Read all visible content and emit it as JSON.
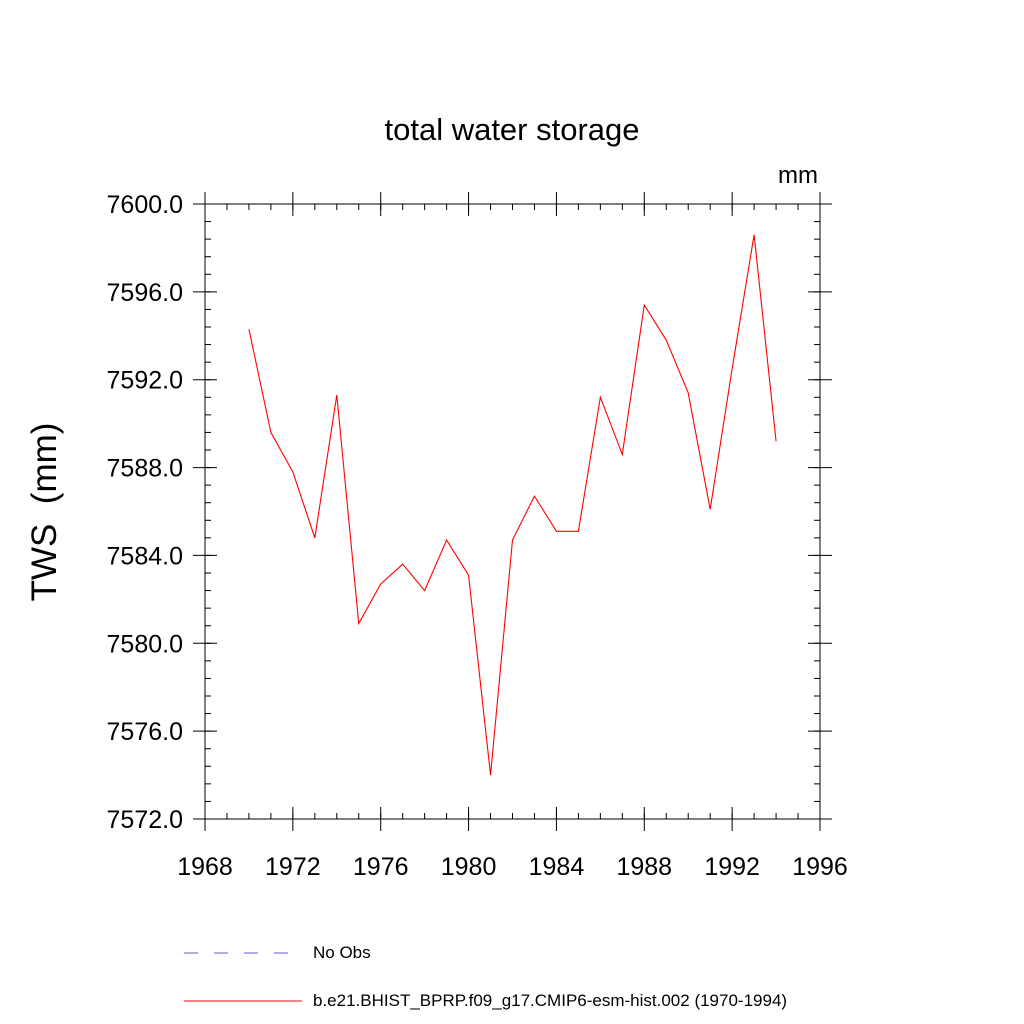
{
  "chart_data": {
    "type": "line",
    "title": "total water storage",
    "units_label": "mm",
    "xlabel": "",
    "ylabel": "TWS  (mm)",
    "xlim": [
      1968,
      1996
    ],
    "ylim": [
      7572.0,
      7600.0
    ],
    "x_ticks": [
      1968,
      1972,
      1976,
      1980,
      1984,
      1988,
      1992,
      1996
    ],
    "y_ticks": [
      "7572.0",
      "7576.0",
      "7580.0",
      "7584.0",
      "7588.0",
      "7592.0",
      "7596.0",
      "7600.0"
    ],
    "y_tick_values": [
      7572,
      7576,
      7580,
      7584,
      7588,
      7592,
      7596,
      7600
    ],
    "x_minor_step": 1,
    "y_minor_step": 0.8,
    "series": [
      {
        "name": "No Obs",
        "color": "#6a5acd",
        "style": "dashed",
        "x": [],
        "values": []
      },
      {
        "name": "b.e21.BHIST_BPRP.f09_g17.CMIP6-esm-hist.002 (1970-1994)",
        "color": "#ff0000",
        "style": "solid",
        "x": [
          1970,
          1971,
          1972,
          1973,
          1974,
          1975,
          1976,
          1977,
          1978,
          1979,
          1980,
          1981,
          1982,
          1983,
          1984,
          1985,
          1986,
          1987,
          1988,
          1989,
          1990,
          1991,
          1992,
          1993,
          1994
        ],
        "values": [
          7594.3,
          7589.6,
          7587.8,
          7584.8,
          7591.3,
          7580.9,
          7582.7,
          7583.6,
          7582.4,
          7584.7,
          7583.1,
          7574.0,
          7584.7,
          7586.7,
          7585.1,
          7585.1,
          7591.2,
          7588.6,
          7595.4,
          7593.8,
          7591.4,
          7586.1,
          7592.5,
          7598.6,
          7589.2
        ]
      }
    ]
  }
}
